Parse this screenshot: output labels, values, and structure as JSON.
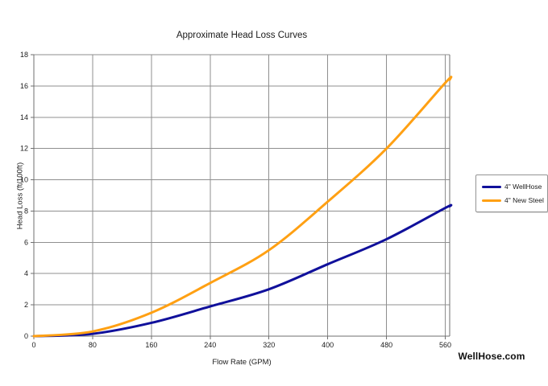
{
  "title": "Approximate Head Loss Curves",
  "watermark": "WellHose.com",
  "chart_data": {
    "type": "line",
    "title": "Approximate Head Loss Curves",
    "xlabel": "Flow Rate (GPM)",
    "ylabel": "Head Loss (ft/100ft)",
    "xlim": [
      0,
      566
    ],
    "ylim": [
      0,
      18
    ],
    "x_ticks": [
      0,
      80,
      160,
      240,
      320,
      400,
      480,
      560
    ],
    "y_ticks": [
      0,
      2,
      4,
      6,
      8,
      10,
      12,
      14,
      16,
      18
    ],
    "grid": true,
    "legend_position": "right",
    "x": [
      0,
      80,
      160,
      240,
      320,
      400,
      480,
      560,
      566
    ],
    "series": [
      {
        "name": "4\" WellHose",
        "color": "#10109b",
        "values": [
          0,
          0.15,
          0.85,
          1.9,
          3.0,
          4.6,
          6.2,
          8.2,
          8.3
        ]
      },
      {
        "name": "4\" New Steel",
        "color": "#ffa013",
        "values": [
          0,
          0.3,
          1.5,
          3.4,
          5.5,
          8.6,
          12.0,
          16.2,
          16.4
        ]
      }
    ]
  }
}
